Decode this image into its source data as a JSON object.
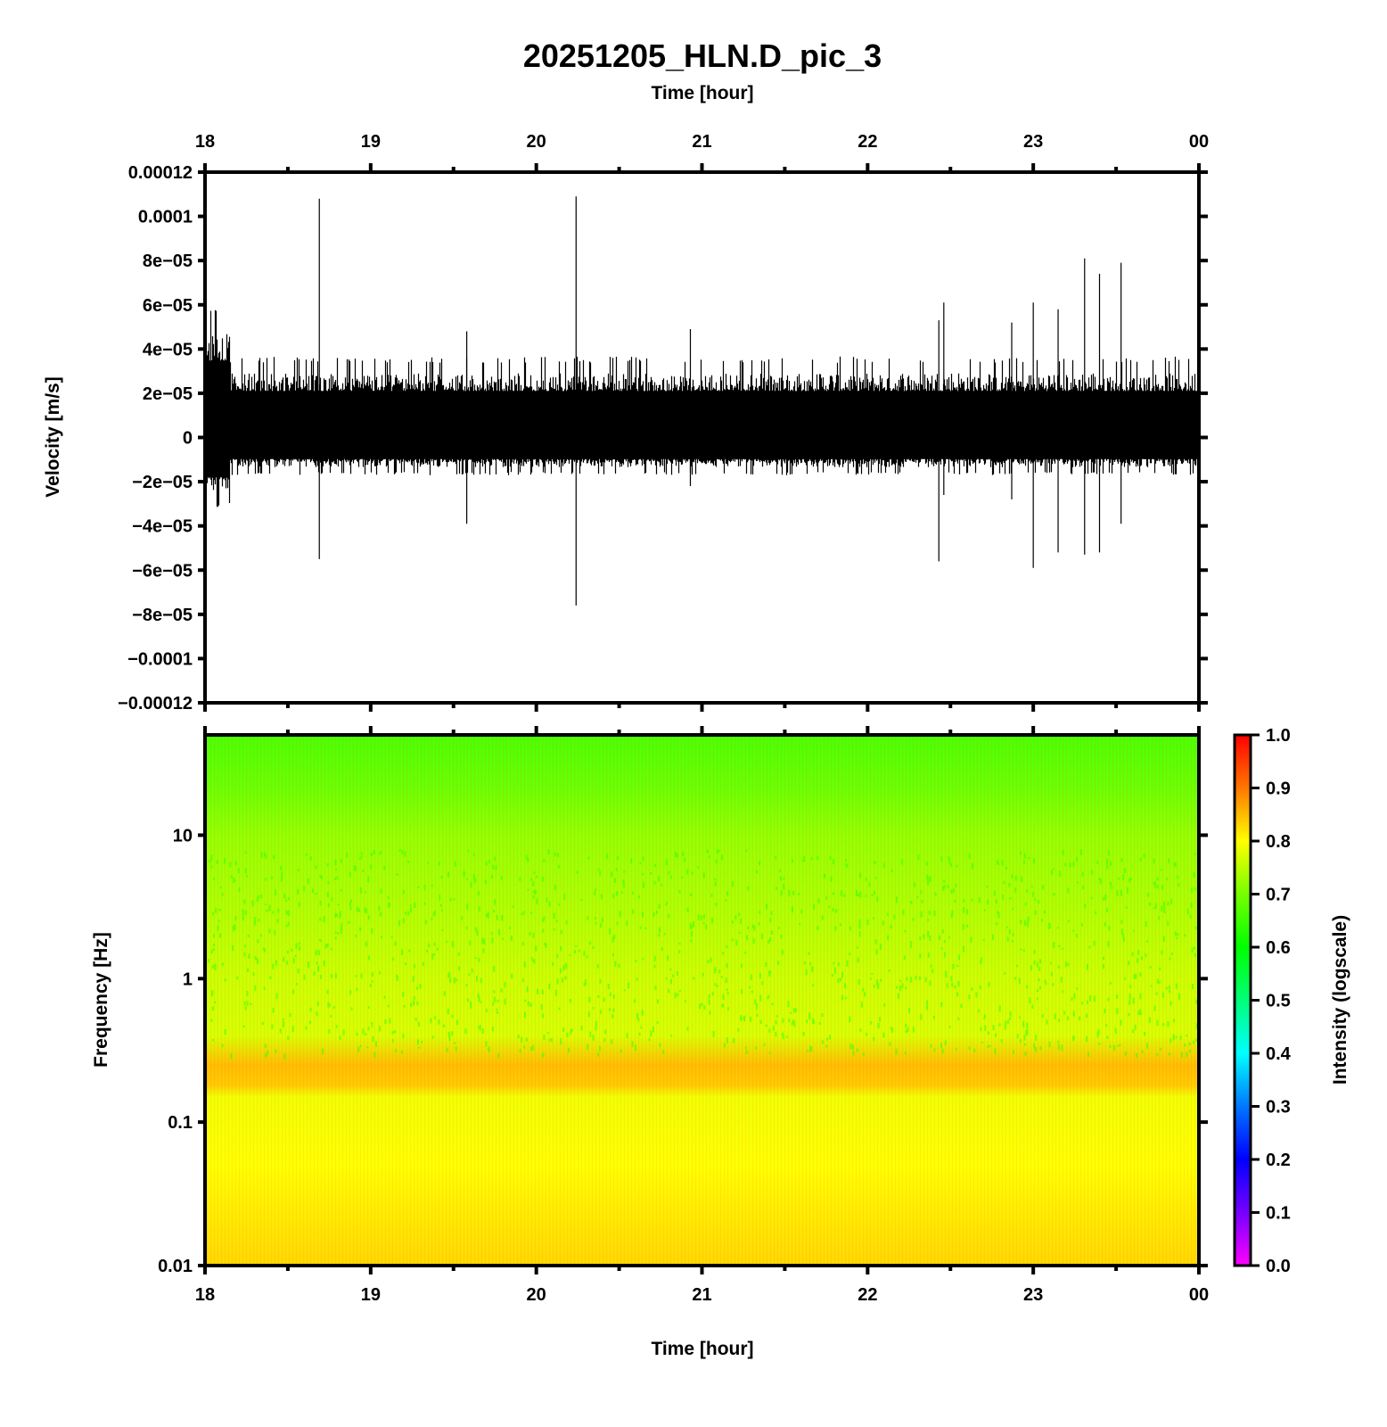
{
  "chart_data": [
    {
      "type": "line",
      "title": "20251205_HLN.D_pic_3",
      "top_xlabel": "Time [hour]",
      "ylabel": "Velocity [m/s]",
      "x_ticks": [
        "18",
        "19",
        "20",
        "21",
        "22",
        "23",
        "00"
      ],
      "xlim_hours": [
        18,
        24
      ],
      "y_ticks": [
        "0.00012",
        "0.0001",
        "8e−05",
        "6e−05",
        "4e−05",
        "2e−05",
        "0",
        "−2e−05",
        "−4e−05",
        "−6e−05",
        "−8e−05",
        "−0.0001",
        "−0.00012"
      ],
      "y_tick_values": [
        0.00012,
        0.0001,
        8e-05,
        6e-05,
        4e-05,
        2e-05,
        0,
        -2e-05,
        -4e-05,
        -6e-05,
        -8e-05,
        -0.0001,
        -0.00012
      ],
      "ylim": [
        -0.00012,
        0.00012
      ],
      "grid": false,
      "trace_color": "#000000",
      "segments": [
        {
          "start_hour": 18.0,
          "end_hour": 18.15,
          "pos_amp": 4.6e-05,
          "neg_amp": -2.4e-05
        },
        {
          "start_hour": 18.15,
          "end_hour": 24.0,
          "pos_amp": 2.8e-05,
          "neg_amp": -1.3e-05
        }
      ],
      "spikes": [
        {
          "hour": 18.69,
          "max": 0.000108,
          "min": -5.5e-05
        },
        {
          "hour": 19.58,
          "max": 4.8e-05,
          "min": -3.9e-05
        },
        {
          "hour": 20.24,
          "max": 0.000109,
          "min": -7.6e-05
        },
        {
          "hour": 20.93,
          "max": 4.9e-05,
          "min": -2.2e-05
        },
        {
          "hour": 22.43,
          "max": 5.3e-05,
          "min": -5.6e-05
        },
        {
          "hour": 22.46,
          "max": 6.1e-05,
          "min": -2.6e-05
        },
        {
          "hour": 22.87,
          "max": 5.2e-05,
          "min": -2.8e-05
        },
        {
          "hour": 23.0,
          "max": 6.1e-05,
          "min": -5.9e-05
        },
        {
          "hour": 23.15,
          "max": 5.8e-05,
          "min": -5.2e-05
        },
        {
          "hour": 23.31,
          "max": 8.1e-05,
          "min": -5.3e-05
        },
        {
          "hour": 23.4,
          "max": 7.4e-05,
          "min": -5.2e-05
        },
        {
          "hour": 23.53,
          "max": 7.9e-05,
          "min": -3.9e-05
        }
      ]
    },
    {
      "type": "heatmap",
      "xlabel": "Time [hour]",
      "ylabel": "Frequency [Hz]",
      "x_ticks": [
        "18",
        "19",
        "20",
        "21",
        "22",
        "23",
        "00"
      ],
      "xlim_hours": [
        18,
        24
      ],
      "y_scale": "log",
      "y_ticks": [
        "10",
        "1",
        "0.1",
        "0.01"
      ],
      "y_tick_values": [
        10,
        1,
        0.1,
        0.01
      ],
      "ylim_hz": [
        0.01,
        50
      ],
      "colorbar_label": "Intensity (logscale)",
      "colorbar_ticks": [
        "1.0",
        "0.9",
        "0.8",
        "0.7",
        "0.6",
        "0.5",
        "0.4",
        "0.3",
        "0.2",
        "0.1",
        "0.0"
      ],
      "colorbar_tick_values": [
        1.0,
        0.9,
        0.8,
        0.7,
        0.6,
        0.5,
        0.4,
        0.3,
        0.2,
        0.1,
        0.0
      ],
      "clim": [
        0.0,
        1.0
      ],
      "colormap": [
        "#ff00ff",
        "#7700ff",
        "#0000ff",
        "#0077ff",
        "#00ffff",
        "#00ff77",
        "#00ff00",
        "#77ff00",
        "#ffff00",
        "#ff7700",
        "#ff0000"
      ],
      "intensity_profile": [
        {
          "freq_hz": 50,
          "intensity": 0.66
        },
        {
          "freq_hz": 20,
          "intensity": 0.69
        },
        {
          "freq_hz": 10,
          "intensity": 0.72
        },
        {
          "freq_hz": 3,
          "intensity": 0.74
        },
        {
          "freq_hz": 1,
          "intensity": 0.76
        },
        {
          "freq_hz": 0.4,
          "intensity": 0.77
        },
        {
          "freq_hz": 0.25,
          "intensity": 0.85
        },
        {
          "freq_hz": 0.18,
          "intensity": 0.84
        },
        {
          "freq_hz": 0.15,
          "intensity": 0.79
        },
        {
          "freq_hz": 0.05,
          "intensity": 0.8
        },
        {
          "freq_hz": 0.01,
          "intensity": 0.83
        }
      ]
    }
  ]
}
